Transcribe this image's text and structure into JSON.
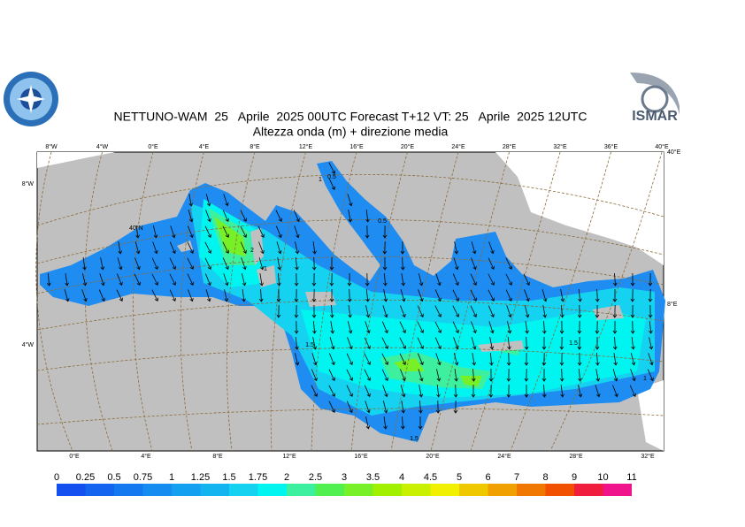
{
  "header": {
    "title": "NETTUNO-WAM  25   Aprile  2025 00UTC Forecast T+12 VT: 25   Aprile  2025 12UTC",
    "subtitle": "Altezza onda (m) + direzione media",
    "logo_text": "ISMAR"
  },
  "map": {
    "top_labels": [
      "8°W",
      "4°W",
      "0°E",
      "4°E",
      "8°E",
      "12°E",
      "16°E",
      "20°E",
      "24°E",
      "28°E",
      "32°E",
      "36°E",
      "40°E"
    ],
    "bottom_labels": [
      "0°E",
      "4°E",
      "8°E",
      "12°E",
      "16°E",
      "20°E",
      "24°E",
      "28°E",
      "32°E"
    ],
    "left_labels": [
      "8°W",
      "4°W"
    ],
    "right_labels": [
      "40°E",
      "8°E"
    ],
    "inner_labels": [
      "40°N"
    ],
    "contour_labels": [
      "1",
      "0.5",
      "0.5",
      "1.5",
      "2",
      "1.5",
      "1.5",
      "1",
      "1"
    ]
  },
  "legend": {
    "labels": [
      "0",
      "0.25",
      "0.5",
      "0.75",
      "1",
      "1.25",
      "1.5",
      "1.75",
      "2",
      "2.5",
      "3",
      "3.5",
      "4",
      "4.5",
      "5",
      "6",
      "7",
      "8",
      "9",
      "10",
      "11"
    ],
    "colors": [
      "#1450f0",
      "#1464f0",
      "#1478f0",
      "#148cf0",
      "#14a0f0",
      "#14b4f0",
      "#14d2f0",
      "#00f5f0",
      "#3cf0a0",
      "#50f050",
      "#78f028",
      "#a0f000",
      "#c8f000",
      "#f0f000",
      "#f0c800",
      "#f0a000",
      "#f07800",
      "#f05000",
      "#f01e3c",
      "#f0148c"
    ]
  }
}
